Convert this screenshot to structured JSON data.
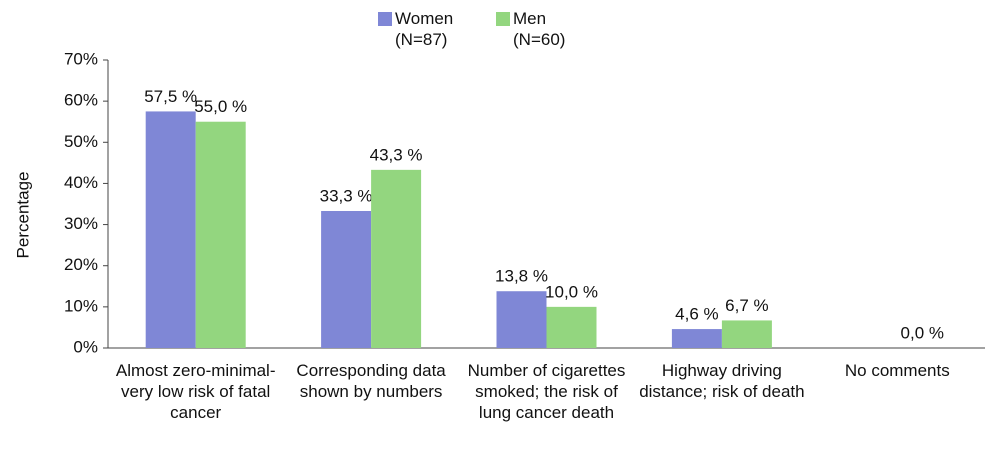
{
  "chart_data": {
    "type": "bar",
    "y_label": "Percentage",
    "categories": [
      "Almost zero-minimal-very low risk of fatal cancer",
      "Corresponding data shown by numbers",
      "Number of cigarettes smoked; the risk of lung cancer death",
      "Highway driving distance; risk of death",
      "No comments"
    ],
    "series": [
      {
        "name": "Women (N=87)",
        "color": "#7f87d6",
        "values": [
          57.5,
          33.3,
          13.8,
          4.6,
          null
        ],
        "value_labels": [
          "57,5 %",
          "33,3 %",
          "13,8 %",
          "4,6 %",
          null
        ]
      },
      {
        "name": "Men (N=60)",
        "color": "#93d67f",
        "values": [
          55.0,
          43.3,
          10.0,
          6.7,
          0.0
        ],
        "value_labels": [
          "55,0 %",
          "43,3 %",
          "10,0 %",
          "6,7 %",
          "0,0 %"
        ]
      }
    ],
    "ylim": [
      0,
      70
    ],
    "yticks": [
      {
        "value": 0,
        "label": "0%"
      },
      {
        "value": 10,
        "label": "10%"
      },
      {
        "value": 20,
        "label": "20%"
      },
      {
        "value": 30,
        "label": "30%"
      },
      {
        "value": 40,
        "label": "40%"
      },
      {
        "value": 50,
        "label": "50%"
      },
      {
        "value": 60,
        "label": "60%"
      },
      {
        "value": 70,
        "label": "70%"
      }
    ],
    "legend": "top"
  }
}
